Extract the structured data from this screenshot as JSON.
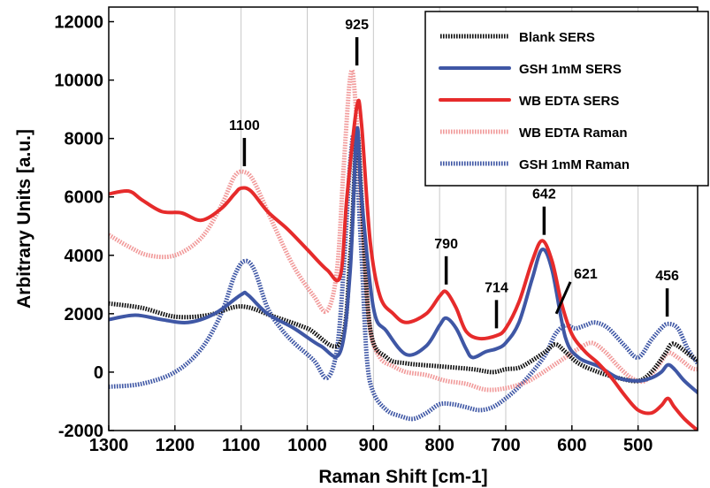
{
  "chart_data": {
    "type": "line",
    "title": "",
    "xlabel": "Raman Shift [cm-1]",
    "ylabel": "Arbitrary Units [a.u.]",
    "xlim": [
      1300,
      410
    ],
    "ylim": [
      -2000,
      12500
    ],
    "x_reversed": true,
    "xticks": [
      1300,
      1200,
      1100,
      1000,
      900,
      800,
      700,
      600,
      500
    ],
    "yticks": [
      -2000,
      0,
      2000,
      4000,
      6000,
      8000,
      10000,
      12000
    ],
    "grid": "vertical",
    "legend_position": "top-right",
    "series": [
      {
        "name": "Blank SERS",
        "color": "#111111",
        "style": "dotted",
        "points": [
          [
            1300,
            2350
          ],
          [
            1250,
            2200
          ],
          [
            1200,
            1900
          ],
          [
            1150,
            1950
          ],
          [
            1100,
            2250
          ],
          [
            1050,
            1900
          ],
          [
            1000,
            1500
          ],
          [
            950,
            1000
          ],
          [
            935,
            4000
          ],
          [
            925,
            8100
          ],
          [
            918,
            6000
          ],
          [
            905,
            1500
          ],
          [
            880,
            500
          ],
          [
            850,
            300
          ],
          [
            800,
            200
          ],
          [
            750,
            100
          ],
          [
            720,
            0
          ],
          [
            700,
            100
          ],
          [
            680,
            150
          ],
          [
            660,
            400
          ],
          [
            640,
            700
          ],
          [
            625,
            950
          ],
          [
            610,
            700
          ],
          [
            590,
            300
          ],
          [
            560,
            0
          ],
          [
            530,
            -200
          ],
          [
            500,
            -300
          ],
          [
            480,
            0
          ],
          [
            460,
            600
          ],
          [
            450,
            950
          ],
          [
            440,
            900
          ],
          [
            420,
            550
          ],
          [
            410,
            400
          ]
        ]
      },
      {
        "name": "GSH 1mM SERS",
        "color": "#3f57a5",
        "style": "solid",
        "points": [
          [
            1300,
            1800
          ],
          [
            1260,
            1950
          ],
          [
            1220,
            1800
          ],
          [
            1180,
            1700
          ],
          [
            1140,
            2000
          ],
          [
            1100,
            2650
          ],
          [
            1090,
            2650
          ],
          [
            1060,
            2000
          ],
          [
            1020,
            1500
          ],
          [
            980,
            900
          ],
          [
            950,
            700
          ],
          [
            935,
            3500
          ],
          [
            925,
            8300
          ],
          [
            918,
            6000
          ],
          [
            900,
            2200
          ],
          [
            880,
            1400
          ],
          [
            850,
            600
          ],
          [
            820,
            900
          ],
          [
            800,
            1600
          ],
          [
            790,
            1850
          ],
          [
            775,
            1500
          ],
          [
            760,
            800
          ],
          [
            750,
            500
          ],
          [
            730,
            700
          ],
          [
            714,
            800
          ],
          [
            700,
            1000
          ],
          [
            680,
            1700
          ],
          [
            660,
            3200
          ],
          [
            645,
            4200
          ],
          [
            630,
            3500
          ],
          [
            610,
            1200
          ],
          [
            590,
            500
          ],
          [
            560,
            200
          ],
          [
            530,
            -200
          ],
          [
            500,
            -300
          ],
          [
            480,
            -200
          ],
          [
            465,
            0
          ],
          [
            455,
            250
          ],
          [
            445,
            100
          ],
          [
            430,
            -300
          ],
          [
            410,
            -700
          ]
        ]
      },
      {
        "name": "WB EDTA SERS",
        "color": "#e62b2b",
        "style": "solid",
        "points": [
          [
            1300,
            6100
          ],
          [
            1270,
            6200
          ],
          [
            1250,
            5900
          ],
          [
            1220,
            5500
          ],
          [
            1190,
            5450
          ],
          [
            1160,
            5200
          ],
          [
            1130,
            5600
          ],
          [
            1110,
            6100
          ],
          [
            1100,
            6300
          ],
          [
            1085,
            6200
          ],
          [
            1060,
            5500
          ],
          [
            1030,
            4900
          ],
          [
            1000,
            4200
          ],
          [
            970,
            3500
          ],
          [
            950,
            3300
          ],
          [
            940,
            6000
          ],
          [
            925,
            9100
          ],
          [
            918,
            8500
          ],
          [
            905,
            4500
          ],
          [
            890,
            2600
          ],
          [
            870,
            2000
          ],
          [
            850,
            1700
          ],
          [
            820,
            2000
          ],
          [
            800,
            2600
          ],
          [
            790,
            2750
          ],
          [
            775,
            2200
          ],
          [
            760,
            1400
          ],
          [
            740,
            1150
          ],
          [
            714,
            1250
          ],
          [
            700,
            1500
          ],
          [
            680,
            2400
          ],
          [
            660,
            3800
          ],
          [
            645,
            4500
          ],
          [
            630,
            3800
          ],
          [
            615,
            2300
          ],
          [
            600,
            1300
          ],
          [
            580,
            700
          ],
          [
            560,
            300
          ],
          [
            540,
            -200
          ],
          [
            520,
            -800
          ],
          [
            500,
            -1300
          ],
          [
            480,
            -1400
          ],
          [
            465,
            -1150
          ],
          [
            455,
            -900
          ],
          [
            445,
            -1200
          ],
          [
            430,
            -1600
          ],
          [
            410,
            -2000
          ]
        ]
      },
      {
        "name": "WB EDTA Raman",
        "color": "#f19a9a",
        "style": "dotted",
        "points": [
          [
            1300,
            4700
          ],
          [
            1270,
            4300
          ],
          [
            1240,
            4000
          ],
          [
            1200,
            4000
          ],
          [
            1160,
            4600
          ],
          [
            1130,
            5700
          ],
          [
            1110,
            6700
          ],
          [
            1095,
            6850
          ],
          [
            1080,
            6500
          ],
          [
            1050,
            5000
          ],
          [
            1020,
            3600
          ],
          [
            990,
            2600
          ],
          [
            970,
            2100
          ],
          [
            955,
            3500
          ],
          [
            945,
            7000
          ],
          [
            935,
            10100
          ],
          [
            928,
            9500
          ],
          [
            915,
            4500
          ],
          [
            905,
            1500
          ],
          [
            890,
            500
          ],
          [
            870,
            200
          ],
          [
            850,
            0
          ],
          [
            820,
            -100
          ],
          [
            790,
            -300
          ],
          [
            760,
            -400
          ],
          [
            730,
            -600
          ],
          [
            700,
            -550
          ],
          [
            670,
            -350
          ],
          [
            650,
            -100
          ],
          [
            630,
            200
          ],
          [
            610,
            500
          ],
          [
            590,
            800
          ],
          [
            570,
            1000
          ],
          [
            550,
            700
          ],
          [
            530,
            200
          ],
          [
            510,
            -200
          ],
          [
            490,
            -300
          ],
          [
            470,
            200
          ],
          [
            455,
            650
          ],
          [
            440,
            500
          ],
          [
            420,
            150
          ],
          [
            410,
            100
          ]
        ]
      },
      {
        "name": "GSH 1mM Raman",
        "color": "#3f57a5",
        "style": "dotted",
        "points": [
          [
            1300,
            -500
          ],
          [
            1250,
            -400
          ],
          [
            1200,
            0
          ],
          [
            1160,
            800
          ],
          [
            1130,
            2000
          ],
          [
            1110,
            3300
          ],
          [
            1095,
            3800
          ],
          [
            1080,
            3500
          ],
          [
            1060,
            2200
          ],
          [
            1040,
            1500
          ],
          [
            1020,
            1000
          ],
          [
            990,
            400
          ],
          [
            970,
            -200
          ],
          [
            955,
            800
          ],
          [
            945,
            3500
          ],
          [
            935,
            7200
          ],
          [
            928,
            7900
          ],
          [
            918,
            4000
          ],
          [
            910,
            500
          ],
          [
            900,
            -700
          ],
          [
            880,
            -1300
          ],
          [
            860,
            -1500
          ],
          [
            840,
            -1600
          ],
          [
            820,
            -1400
          ],
          [
            800,
            -1100
          ],
          [
            780,
            -1100
          ],
          [
            760,
            -1200
          ],
          [
            740,
            -1300
          ],
          [
            720,
            -1200
          ],
          [
            700,
            -900
          ],
          [
            680,
            -500
          ],
          [
            660,
            0
          ],
          [
            640,
            600
          ],
          [
            625,
            1300
          ],
          [
            610,
            1600
          ],
          [
            595,
            1500
          ],
          [
            580,
            1600
          ],
          [
            565,
            1700
          ],
          [
            545,
            1500
          ],
          [
            520,
            900
          ],
          [
            500,
            500
          ],
          [
            480,
            1100
          ],
          [
            465,
            1500
          ],
          [
            455,
            1650
          ],
          [
            440,
            1500
          ],
          [
            425,
            800
          ],
          [
            410,
            300
          ]
        ]
      }
    ],
    "annotations": [
      {
        "label": "1100",
        "x": 1095,
        "y_tip": 7050
      },
      {
        "label": "925",
        "x": 925,
        "y_tip": 10500
      },
      {
        "label": "790",
        "x": 790,
        "y_tip": 3000
      },
      {
        "label": "714",
        "x": 714,
        "y_tip": 1500
      },
      {
        "label": "642",
        "x": 642,
        "y_tip": 4700
      },
      {
        "label": "621",
        "x": 621,
        "y_tip": 2000
      },
      {
        "label": "456",
        "x": 456,
        "y_tip": 1900
      }
    ]
  }
}
